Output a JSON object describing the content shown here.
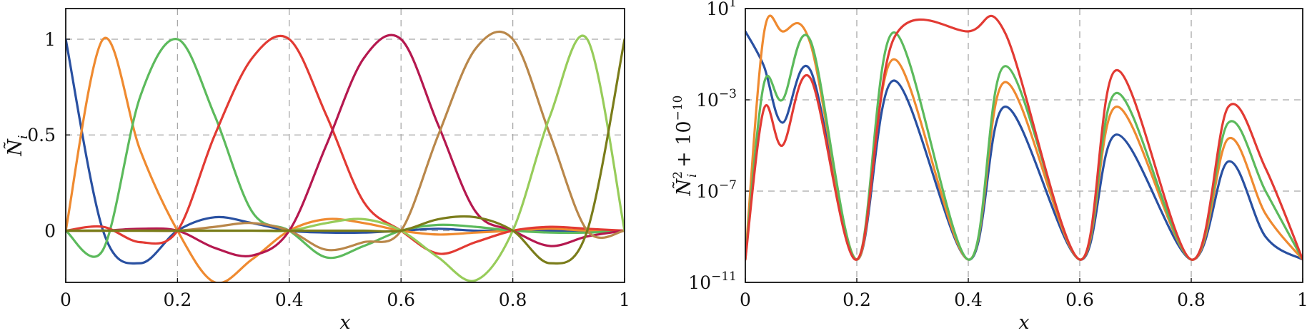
{
  "chart_data": [
    {
      "type": "line",
      "xlabel": "x",
      "ylabel": "Ñ_i",
      "xlim": [
        0,
        1
      ],
      "ylim": [
        -0.27,
        1.16
      ],
      "grid": true,
      "legend": "none",
      "x_ticks": [
        "0",
        "0.2",
        "0.4",
        "0.6",
        "0.8",
        "1"
      ],
      "y_ticks": [
        "0",
        "0.5",
        "1"
      ],
      "x": [
        0,
        0.0667,
        0.1333,
        0.2,
        0.2667,
        0.3333,
        0.4,
        0.4667,
        0.5333,
        0.6,
        0.6667,
        0.7333,
        0.8,
        0.8667,
        0.9333,
        1
      ],
      "series": [
        {
          "color": "#2950a1",
          "values": [
            1.0,
            0.0,
            -0.17,
            0.0,
            0.07,
            0.04,
            0.0,
            -0.01,
            -0.01,
            0.0,
            0.01,
            0.0,
            0.0,
            0.0,
            0.0,
            0.0
          ]
        },
        {
          "color": "#ef8a30",
          "values": [
            0.0,
            1.0,
            0.42,
            0.0,
            -0.27,
            -0.15,
            0.0,
            0.06,
            0.04,
            0.0,
            -0.02,
            -0.01,
            0.0,
            0.01,
            0.0,
            0.0
          ]
        },
        {
          "color": "#5cba5c",
          "values": [
            0.0,
            -0.1,
            0.7,
            1.0,
            0.6,
            0.1,
            0.0,
            -0.14,
            -0.08,
            0.0,
            0.03,
            0.02,
            0.0,
            -0.01,
            -0.01,
            0.0
          ]
        },
        {
          "color": "#e23a33",
          "values": [
            0.0,
            0.02,
            -0.06,
            0.0,
            0.5,
            0.9,
            1.0,
            0.6,
            0.15,
            0.0,
            -0.12,
            -0.06,
            0.0,
            0.02,
            0.01,
            0.0
          ]
        },
        {
          "color": "#b5184f",
          "values": [
            0.0,
            0.0,
            0.01,
            0.0,
            -0.09,
            -0.13,
            0.0,
            0.45,
            0.9,
            1.0,
            0.55,
            0.1,
            0.0,
            -0.08,
            -0.03,
            0.0
          ]
        },
        {
          "color": "#b9874a",
          "values": [
            0.0,
            0.0,
            0.0,
            0.0,
            0.02,
            0.04,
            0.0,
            -0.1,
            -0.06,
            0.0,
            0.5,
            0.95,
            1.0,
            0.5,
            0.0,
            0.0
          ]
        },
        {
          "color": "#97cc5a",
          "values": [
            0.0,
            0.0,
            0.0,
            0.0,
            0.0,
            0.0,
            0.0,
            0.04,
            0.06,
            0.0,
            -0.14,
            -0.26,
            0.0,
            0.6,
            1.0,
            0.0
          ]
        },
        {
          "color": "#7a7c1a",
          "values": [
            0.0,
            0.0,
            0.0,
            0.0,
            0.0,
            0.0,
            0.0,
            0.0,
            0.0,
            0.0,
            0.06,
            0.07,
            0.0,
            -0.17,
            0.0,
            1.0
          ]
        }
      ]
    },
    {
      "type": "line",
      "xlabel": "x",
      "ylabel": "Ñ_i² + 10^-10",
      "xlim": [
        0,
        1
      ],
      "ylim": [
        1e-11,
        10
      ],
      "yscale": "log",
      "grid": true,
      "legend": "none",
      "x_ticks": [
        "0",
        "0.2",
        "0.4",
        "0.6",
        "0.8",
        "1"
      ],
      "y_ticks": [
        {
          "base": "10",
          "exp": "1"
        },
        {
          "base": "10",
          "exp": "−3"
        },
        {
          "base": "10",
          "exp": "−7"
        },
        {
          "base": "10",
          "exp": "−11"
        }
      ],
      "x": [
        0,
        0.0333,
        0.0667,
        0.1167,
        0.2,
        0.2667,
        0.4,
        0.4667,
        0.6,
        0.6667,
        0.8,
        0.8667,
        0.9333,
        1
      ],
      "series": [
        {
          "color": "#2950a1",
          "values": [
            1.0,
            0.03,
            0.0001,
            0.02,
            1e-10,
            0.007,
            1e-10,
            0.0005,
            1e-10,
            3e-05,
            1e-10,
            2e-06,
            1e-09,
            1e-10
          ]
        },
        {
          "color": "#ef8a30",
          "values": [
            1e-10,
            0.8,
            1.0,
            0.3,
            1e-10,
            0.06,
            1e-10,
            0.006,
            1e-10,
            0.0005,
            1e-10,
            2e-05,
            1e-08,
            1e-10
          ]
        },
        {
          "color": "#5cba5c",
          "values": [
            1e-10,
            0.005,
            0.001,
            0.4,
            1e-10,
            0.9,
            1e-10,
            0.03,
            1e-10,
            0.002,
            1e-10,
            0.0001,
            1e-07,
            1e-10
          ]
        },
        {
          "color": "#e23a33",
          "values": [
            1e-10,
            0.0004,
            1e-05,
            0.009,
            1e-10,
            0.5,
            1.0,
            0.8,
            1e-10,
            0.02,
            1e-10,
            0.0005,
            1e-06,
            1e-10
          ]
        }
      ]
    }
  ]
}
